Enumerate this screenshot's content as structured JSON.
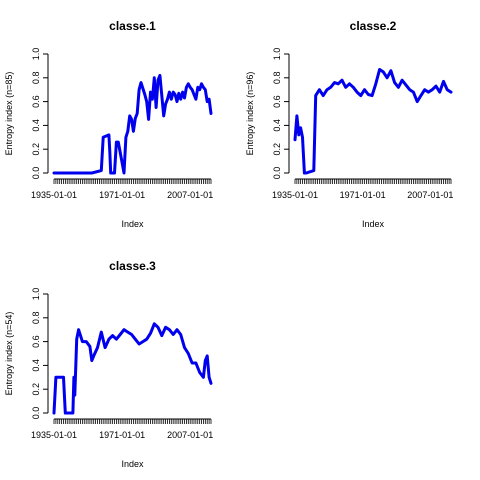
{
  "chart_data": [
    {
      "type": "line",
      "title": "classe.1",
      "xlabel": "Index",
      "ylabel": "Entropy index (n=85)",
      "ylim": [
        0,
        1
      ],
      "yticks": [
        "0.0",
        "0.2",
        "0.4",
        "0.6",
        "0.8",
        "1.0"
      ],
      "xtick_labels": [
        "1935-01-01",
        "1971-01-01",
        "2007-01-01"
      ],
      "grid": false,
      "color": "#0000ee",
      "series": [
        {
          "x": [
            1935,
            1945,
            1955,
            1960,
            1961,
            1964,
            1964.5,
            1965,
            1967,
            1968,
            1969,
            1972,
            1973,
            1974,
            1975,
            1976,
            1977,
            1978,
            1979,
            1980,
            1981,
            1983,
            1984,
            1985,
            1986,
            1987,
            1988,
            1989,
            1990,
            1991,
            1992,
            1993,
            1994,
            1995,
            1996,
            1997,
            1998,
            1999,
            2000,
            2001,
            2002,
            2003,
            2004,
            2005,
            2006,
            2007,
            2008,
            2009,
            2010,
            2011,
            2012,
            2013,
            2014,
            2015,
            2016,
            2017,
            2018
          ],
          "y": [
            0,
            0,
            0,
            0.02,
            0.3,
            0.32,
            0.18,
            0,
            0,
            0.26,
            0.26,
            0,
            0.3,
            0.35,
            0.48,
            0.45,
            0.35,
            0.46,
            0.5,
            0.7,
            0.76,
            0.66,
            0.6,
            0.45,
            0.68,
            0.62,
            0.8,
            0.55,
            0.78,
            0.82,
            0.65,
            0.48,
            0.58,
            0.62,
            0.68,
            0.62,
            0.68,
            0.66,
            0.6,
            0.67,
            0.62,
            0.68,
            0.63,
            0.72,
            0.75,
            0.72,
            0.7,
            0.66,
            0.62,
            0.72,
            0.7,
            0.75,
            0.72,
            0.7,
            0.6,
            0.62,
            0.5
          ]
        }
      ]
    },
    {
      "type": "line",
      "title": "classe.2",
      "xlabel": "Index",
      "ylabel": "Entropy index (n=96)",
      "ylim": [
        0,
        1
      ],
      "yticks": [
        "0.0",
        "0.2",
        "0.4",
        "0.6",
        "0.8",
        "1.0"
      ],
      "xtick_labels": [
        "1935-01-01",
        "1971-01-01",
        "2007-01-01"
      ],
      "grid": false,
      "color": "#0000ee",
      "series": [
        {
          "x": [
            1935,
            1936,
            1937,
            1938,
            1939,
            1940,
            1941,
            1945,
            1946,
            1948,
            1950,
            1952,
            1954,
            1956,
            1958,
            1960,
            1962,
            1964,
            1966,
            1968,
            1970,
            1972,
            1974,
            1976,
            1978,
            1980,
            1982,
            1984,
            1986,
            1988,
            1990,
            1992,
            1994,
            1996,
            1998,
            2000,
            2002,
            2004,
            2006,
            2008,
            2010,
            2012,
            2014,
            2016,
            2018
          ],
          "y": [
            0.28,
            0.48,
            0.32,
            0.38,
            0.3,
            0,
            0,
            0.02,
            0.65,
            0.7,
            0.65,
            0.7,
            0.72,
            0.76,
            0.75,
            0.78,
            0.72,
            0.75,
            0.72,
            0.68,
            0.65,
            0.7,
            0.66,
            0.65,
            0.75,
            0.87,
            0.85,
            0.8,
            0.86,
            0.76,
            0.72,
            0.78,
            0.74,
            0.7,
            0.68,
            0.6,
            0.65,
            0.7,
            0.68,
            0.7,
            0.73,
            0.68,
            0.77,
            0.7,
            0.68
          ]
        }
      ]
    },
    {
      "type": "line",
      "title": "classe.3",
      "xlabel": "Index",
      "ylabel": "Entropy index (n=54)",
      "ylim": [
        0,
        1
      ],
      "yticks": [
        "0.0",
        "0.2",
        "0.4",
        "0.6",
        "0.8",
        "1.0"
      ],
      "xtick_labels": [
        "1935-01-01",
        "1971-01-01",
        "2007-01-01"
      ],
      "grid": false,
      "color": "#0000ee",
      "series": [
        {
          "x": [
            1935,
            1936,
            1940,
            1941,
            1945,
            1945.5,
            1946,
            1947,
            1948,
            1950,
            1952,
            1954,
            1955,
            1956,
            1958,
            1960,
            1962,
            1964,
            1966,
            1968,
            1970,
            1972,
            1974,
            1976,
            1978,
            1980,
            1982,
            1984,
            1986,
            1988,
            1990,
            1992,
            1994,
            1996,
            1998,
            2000,
            2002,
            2004,
            2006,
            2008,
            2010,
            2012,
            2014,
            2015,
            2016,
            2017,
            2018
          ],
          "y": [
            0,
            0.3,
            0.3,
            0,
            0,
            0.3,
            0.15,
            0.62,
            0.7,
            0.6,
            0.6,
            0.56,
            0.44,
            0.48,
            0.55,
            0.68,
            0.55,
            0.62,
            0.65,
            0.62,
            0.66,
            0.7,
            0.68,
            0.66,
            0.62,
            0.58,
            0.6,
            0.62,
            0.67,
            0.75,
            0.72,
            0.65,
            0.72,
            0.7,
            0.66,
            0.7,
            0.66,
            0.55,
            0.5,
            0.42,
            0.42,
            0.34,
            0.3,
            0.44,
            0.48,
            0.3,
            0.25
          ]
        }
      ]
    }
  ]
}
